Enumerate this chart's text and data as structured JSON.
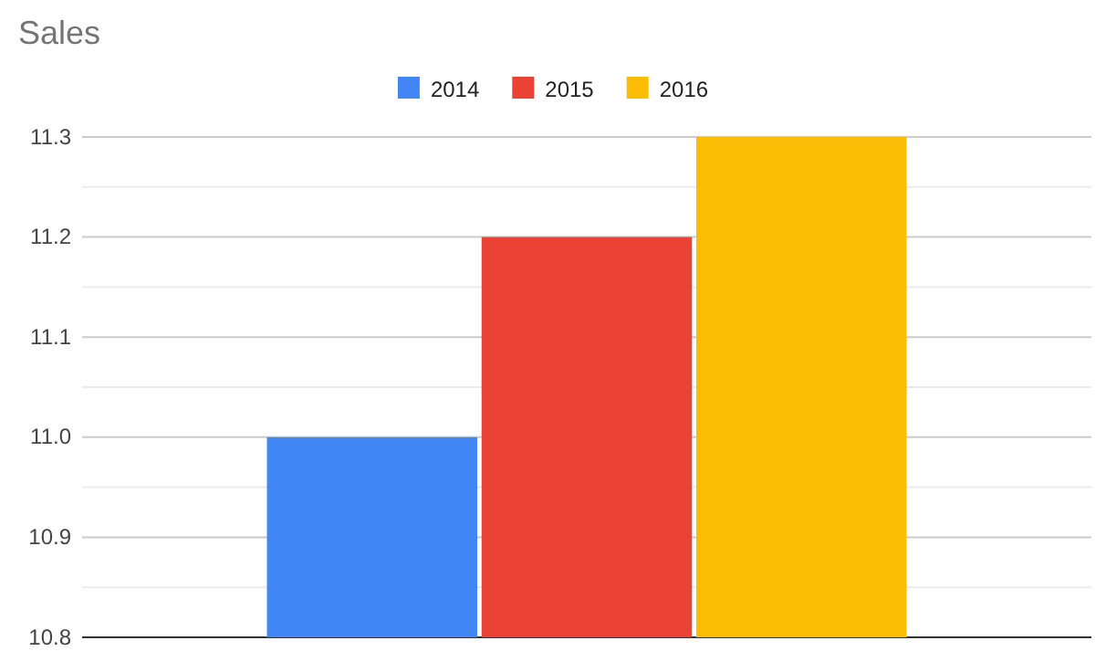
{
  "chart_data": {
    "type": "bar",
    "title": "Sales",
    "categories": [
      null
    ],
    "series": [
      {
        "name": "2014",
        "color": "#4285f4",
        "values": [
          11.0
        ]
      },
      {
        "name": "2015",
        "color": "#ea4335",
        "values": [
          11.2
        ]
      },
      {
        "name": "2016",
        "color": "#fbbc04",
        "values": [
          11.3
        ]
      }
    ],
    "ylim": [
      10.8,
      11.3
    ],
    "yticks": [
      {
        "value": 10.8,
        "label": "10.8"
      },
      {
        "value": 10.85,
        "label": null
      },
      {
        "value": 10.9,
        "label": "10.9"
      },
      {
        "value": 10.95,
        "label": null
      },
      {
        "value": 11.0,
        "label": "11.0"
      },
      {
        "value": 11.05,
        "label": null
      },
      {
        "value": 11.1,
        "label": "11.1"
      },
      {
        "value": 11.15,
        "label": null
      },
      {
        "value": 11.2,
        "label": "11.2"
      },
      {
        "value": 11.25,
        "label": null
      },
      {
        "value": 11.3,
        "label": "11.3"
      }
    ],
    "grid": "y",
    "legend": "top"
  }
}
